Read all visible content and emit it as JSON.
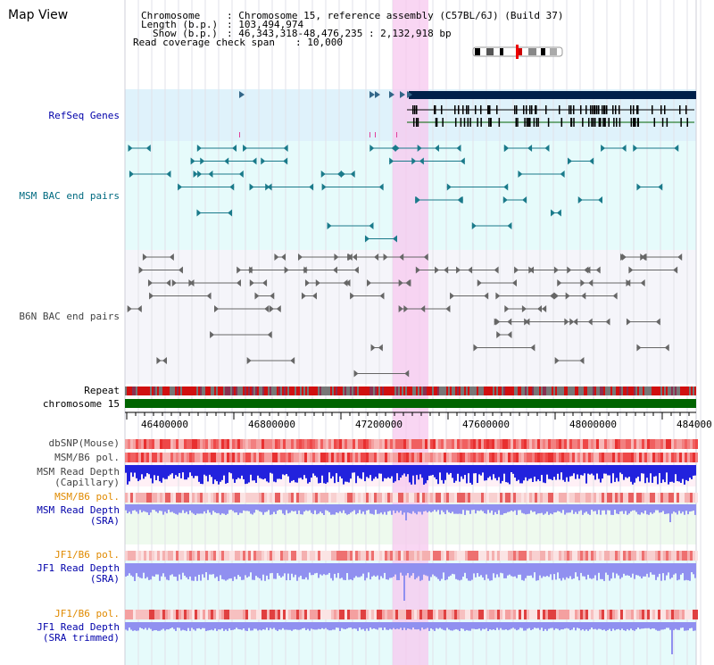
{
  "view_title": "Map View",
  "info": {
    "chromosome_label": "Chromosome",
    "chromosome_value": ": Chromosome 15, reference assembly (C57BL/6J) (Build 37)",
    "length_label": "Length (b.p.)",
    "length_value": ": 103,494,974",
    "show_label": "Show (b.p.)",
    "show_value": ": 46,343,318-48,476,235 : 2,132,918 bp",
    "coverage_label": "Read coverage check span",
    "coverage_value": ": 10,000"
  },
  "tracks": {
    "refseq": "RefSeq Genes",
    "msm_bac": "MSM BAC end pairs",
    "b6n_bac": "B6N BAC end pairs",
    "repeat": "Repeat",
    "chromosome": "chromosome 15",
    "dbsnp": "dbSNP(Mouse)",
    "msm_b6_pol_1": "MSM/B6 pol.",
    "msm_depth_cap_1": "MSM Read Depth",
    "msm_depth_cap_2": "(Capillary)",
    "msm_b6_pol_2": "MSM/B6 pol.",
    "msm_depth_sra_1": "MSM Read Depth",
    "msm_depth_sra_2": "(SRA)",
    "jf1_b6_pol_1": "JF1/B6 pol.",
    "jf1_depth_sra_1": "JF1 Read Depth",
    "jf1_depth_sra_2": "(SRA)",
    "jf1_b6_pol_2": "JF1/B6 pol.",
    "jf1_depth_trim_1": "JF1 Read Depth",
    "jf1_depth_trim_2": "(SRA trimmed)"
  },
  "axis_ticks": [
    "46400000",
    "46800000",
    "47200000",
    "47600000",
    "48000000",
    "484000"
  ],
  "colors": {
    "refseq_bg": "#dff2fb",
    "msm_bac_bg": "#e6fbfb",
    "highlight": "#f7c8ef",
    "chromosome_bar": "#006400",
    "refseq_bar": "#00204a",
    "msm_bac_line": "#1a7a8a",
    "b6n_line": "#666666",
    "depth_blue": "#2222dd",
    "depth_light": "#9090f0"
  }
}
